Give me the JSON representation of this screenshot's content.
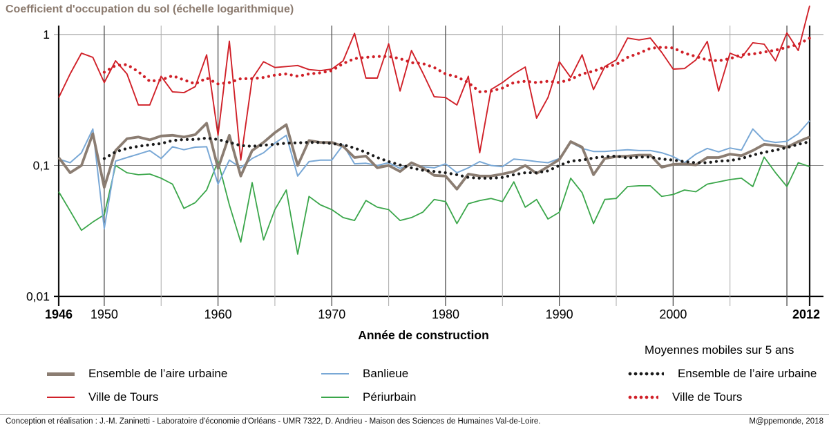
{
  "title": "Coefficient d'occupation du sol (échelle logarithmique)",
  "legend": {
    "ma_heading": "Moyennes mobiles sur 5 ans",
    "left": [
      {
        "label": "Ensemble de l’aire urbaine",
        "color": "#8b7d72",
        "swatch": "line",
        "thick": true
      },
      {
        "label": "Ville de Tours",
        "color": "#d02028",
        "swatch": "line",
        "thick": false
      }
    ],
    "mid": [
      {
        "label": "Banlieue",
        "color": "#79a8d6",
        "swatch": "line",
        "thick": false
      },
      {
        "label": "Périurbain",
        "color": "#3aa64a",
        "swatch": "line",
        "thick": false
      }
    ],
    "right": [
      {
        "label": "Ensemble de l’aire urbaine",
        "color": "#1a1a1a",
        "swatch": "dots",
        "dots": 7
      },
      {
        "label": "Ville de Tours",
        "color": "#d02028",
        "swatch": "dots",
        "dots": 6
      }
    ]
  },
  "footer": {
    "credits": "Conception et réalisation : J.-M. Zaninetti - Laboratoire d'économie d'Orléans - UMR 7322,  D. Andrieu - Maison des Sciences de Humaines Val-de-Loire.",
    "source": "M@ppemonde, 2018"
  },
  "chart_data": {
    "type": "line",
    "title": "Coefficient d'occupation du sol (échelle logarithmique)",
    "xlabel": "Année de construction",
    "y_scale": "log",
    "ylim": [
      0.01,
      1
    ],
    "xlim": [
      1946,
      2012
    ],
    "y_ticks": [
      {
        "value": 1,
        "label": "1"
      },
      {
        "value": 0.1,
        "label": "0,1"
      },
      {
        "value": 0.01,
        "label": "0,01"
      }
    ],
    "x_ticks": [
      {
        "year": 1946,
        "label": "1946",
        "bold": true,
        "kind": "edge"
      },
      {
        "year": 1950,
        "label": "1950",
        "bold": false,
        "kind": "decade"
      },
      {
        "year": 1955,
        "label": "",
        "bold": false,
        "kind": "minor"
      },
      {
        "year": 1960,
        "label": "1960",
        "bold": false,
        "kind": "decade"
      },
      {
        "year": 1965,
        "label": "",
        "bold": false,
        "kind": "minor"
      },
      {
        "year": 1970,
        "label": "1970",
        "bold": false,
        "kind": "decade"
      },
      {
        "year": 1975,
        "label": "",
        "bold": false,
        "kind": "minor"
      },
      {
        "year": 1980,
        "label": "1980",
        "bold": false,
        "kind": "decade"
      },
      {
        "year": 1985,
        "label": "",
        "bold": false,
        "kind": "minor"
      },
      {
        "year": 1990,
        "label": "1990",
        "bold": false,
        "kind": "decade"
      },
      {
        "year": 1995,
        "label": "",
        "bold": false,
        "kind": "minor"
      },
      {
        "year": 2000,
        "label": "2000",
        "bold": false,
        "kind": "decade"
      },
      {
        "year": 2005,
        "label": "",
        "bold": false,
        "kind": "minor"
      },
      {
        "year": 2010,
        "label": "",
        "bold": false,
        "kind": "decade"
      },
      {
        "year": 2012,
        "label": "2012",
        "bold": true,
        "kind": "edge"
      }
    ],
    "series": [
      {
        "name": "Périurbain",
        "color": "#3aa64a",
        "style": "solid",
        "width": 1.8,
        "x_start": 1946,
        "values": [
          0.063,
          0.045,
          0.032,
          0.037,
          0.042,
          0.1,
          0.088,
          0.085,
          0.086,
          0.08,
          0.072,
          0.047,
          0.052,
          0.065,
          0.108,
          0.05,
          0.026,
          0.074,
          0.027,
          0.046,
          0.065,
          0.021,
          0.058,
          0.05,
          0.046,
          0.04,
          0.038,
          0.054,
          0.048,
          0.046,
          0.038,
          0.04,
          0.044,
          0.055,
          0.053,
          0.036,
          0.051,
          0.054,
          0.056,
          0.053,
          0.075,
          0.048,
          0.055,
          0.039,
          0.044,
          0.08,
          0.062,
          0.036,
          0.055,
          0.056,
          0.069,
          0.07,
          0.07,
          0.058,
          0.06,
          0.065,
          0.063,
          0.072,
          0.075,
          0.078,
          0.08,
          0.069,
          0.116,
          0.088,
          0.069,
          0.105,
          0.098
        ]
      },
      {
        "name": "Banlieue",
        "color": "#79a8d6",
        "style": "solid",
        "width": 2,
        "x_start": 1946,
        "values": [
          0.112,
          0.105,
          0.125,
          0.19,
          0.033,
          0.108,
          0.115,
          0.122,
          0.13,
          0.113,
          0.139,
          0.132,
          0.138,
          0.139,
          0.072,
          0.11,
          0.096,
          0.113,
          0.125,
          0.148,
          0.17,
          0.083,
          0.107,
          0.11,
          0.11,
          0.144,
          0.103,
          0.104,
          0.1,
          0.105,
          0.095,
          0.103,
          0.098,
          0.096,
          0.103,
          0.088,
          0.096,
          0.107,
          0.1,
          0.098,
          0.112,
          0.11,
          0.107,
          0.105,
          0.113,
          0.15,
          0.135,
          0.128,
          0.128,
          0.13,
          0.132,
          0.13,
          0.13,
          0.125,
          0.117,
          0.105,
          0.122,
          0.135,
          0.127,
          0.136,
          0.131,
          0.19,
          0.155,
          0.15,
          0.153,
          0.175,
          0.22
        ]
      },
      {
        "name": "Ensemble de l'aire urbaine",
        "color": "#8b7d72",
        "style": "solid",
        "width": 3.8,
        "x_start": 1946,
        "values": [
          0.115,
          0.088,
          0.1,
          0.175,
          0.068,
          0.13,
          0.16,
          0.165,
          0.157,
          0.168,
          0.17,
          0.165,
          0.172,
          0.21,
          0.095,
          0.17,
          0.083,
          0.13,
          0.15,
          0.178,
          0.205,
          0.1,
          0.155,
          0.15,
          0.15,
          0.14,
          0.115,
          0.118,
          0.096,
          0.1,
          0.09,
          0.105,
          0.096,
          0.084,
          0.083,
          0.066,
          0.086,
          0.083,
          0.083,
          0.086,
          0.09,
          0.1,
          0.087,
          0.098,
          0.111,
          0.152,
          0.138,
          0.085,
          0.113,
          0.117,
          0.118,
          0.12,
          0.12,
          0.097,
          0.102,
          0.103,
          0.101,
          0.115,
          0.115,
          0.122,
          0.119,
          0.13,
          0.145,
          0.142,
          0.138,
          0.152,
          0.165
        ]
      },
      {
        "name": "Ville de Tours",
        "color": "#d02028",
        "style": "solid",
        "width": 1.9,
        "x_start": 1946,
        "values": [
          0.33,
          0.5,
          0.72,
          0.67,
          0.43,
          0.63,
          0.5,
          0.29,
          0.29,
          0.48,
          0.365,
          0.36,
          0.4,
          0.7,
          0.17,
          0.89,
          0.11,
          0.46,
          0.62,
          0.56,
          0.57,
          0.58,
          0.54,
          0.53,
          0.545,
          0.63,
          1.02,
          0.465,
          0.465,
          0.85,
          0.37,
          0.755,
          0.51,
          0.335,
          0.33,
          0.29,
          0.48,
          0.125,
          0.38,
          0.43,
          0.5,
          0.565,
          0.23,
          0.33,
          0.62,
          0.47,
          0.7,
          0.38,
          0.57,
          0.64,
          0.94,
          0.91,
          0.94,
          0.73,
          0.545,
          0.55,
          0.64,
          0.886,
          0.37,
          0.72,
          0.665,
          0.865,
          0.845,
          0.63,
          1.03,
          0.755,
          1.66
        ]
      },
      {
        "name": "Ensemble de l'aire urbaine (moyenne mobile 5 ans)",
        "color": "#1a1a1a",
        "style": "dotted",
        "width": 4.2,
        "x_start": 1950,
        "values": [
          0.113,
          0.127,
          0.135,
          0.14,
          0.144,
          0.147,
          0.155,
          0.158,
          0.158,
          0.162,
          0.158,
          0.15,
          0.142,
          0.14,
          0.143,
          0.145,
          0.148,
          0.149,
          0.15,
          0.15,
          0.147,
          0.144,
          0.136,
          0.126,
          0.115,
          0.107,
          0.101,
          0.096,
          0.092,
          0.09,
          0.088,
          0.085,
          0.081,
          0.08,
          0.08,
          0.081,
          0.085,
          0.088,
          0.088,
          0.091,
          0.1,
          0.108,
          0.11,
          0.114,
          0.117,
          0.118,
          0.114,
          0.116,
          0.116,
          0.112,
          0.11,
          0.107,
          0.105,
          0.105,
          0.108,
          0.109,
          0.113,
          0.12,
          0.126,
          0.131,
          0.137,
          0.145,
          0.152
        ]
      },
      {
        "name": "Ville de Tours (moyenne mobile 5 ans)",
        "color": "#d02028",
        "style": "dotted",
        "width": 4.2,
        "x_start": 1950,
        "values": [
          0.515,
          0.58,
          0.59,
          0.52,
          0.44,
          0.45,
          0.485,
          0.45,
          0.42,
          0.465,
          0.42,
          0.43,
          0.46,
          0.46,
          0.47,
          0.49,
          0.5,
          0.48,
          0.5,
          0.51,
          0.53,
          0.6,
          0.655,
          0.67,
          0.68,
          0.68,
          0.655,
          0.61,
          0.6,
          0.56,
          0.5,
          0.475,
          0.43,
          0.365,
          0.37,
          0.39,
          0.43,
          0.44,
          0.43,
          0.44,
          0.43,
          0.455,
          0.5,
          0.525,
          0.565,
          0.59,
          0.67,
          0.72,
          0.785,
          0.8,
          0.79,
          0.72,
          0.68,
          0.64,
          0.63,
          0.655,
          0.7,
          0.71,
          0.735,
          0.76,
          0.8,
          0.84,
          0.94
        ]
      }
    ],
    "layout": {
      "grid": true,
      "legend_position": "bottom"
    }
  }
}
